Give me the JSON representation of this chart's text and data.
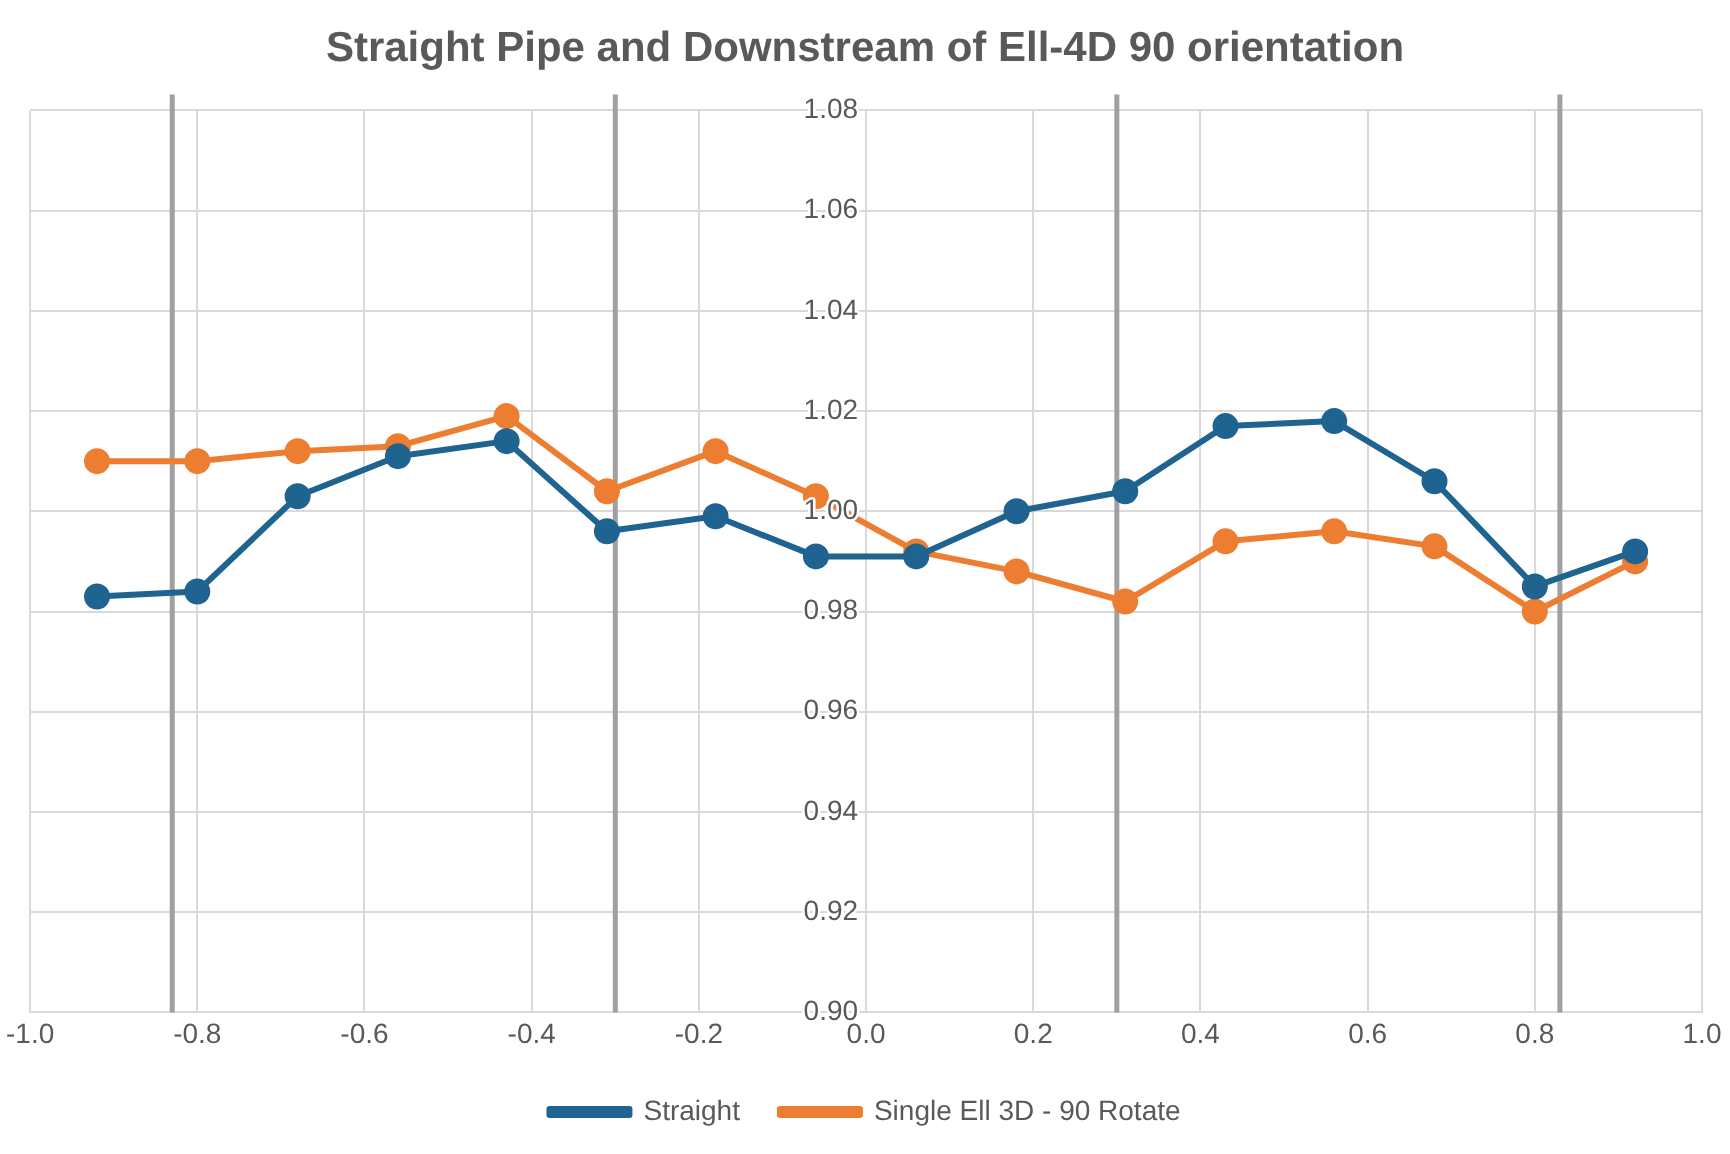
{
  "chart_data": {
    "type": "line",
    "title": "Straight Pipe and Downstream of Ell-4D 90 orientation",
    "x": [
      -0.92,
      -0.8,
      -0.68,
      -0.56,
      -0.43,
      -0.31,
      -0.18,
      -0.06,
      0.06,
      0.18,
      0.31,
      0.43,
      0.56,
      0.68,
      0.8,
      0.92
    ],
    "series": [
      {
        "name": "Straight",
        "color": "#1f6391",
        "values": [
          0.983,
          0.984,
          1.003,
          1.011,
          1.014,
          0.996,
          0.999,
          0.991,
          0.991,
          1.0,
          1.004,
          1.017,
          1.018,
          1.006,
          0.985,
          0.992
        ]
      },
      {
        "name": "Single Ell 3D - 90 Rotate",
        "color": "#ed7d31",
        "values": [
          1.01,
          1.01,
          1.012,
          1.013,
          1.019,
          1.004,
          1.012,
          1.003,
          0.992,
          0.988,
          0.982,
          0.994,
          0.996,
          0.993,
          0.98,
          0.99
        ]
      }
    ],
    "xlim": [
      -1.0,
      1.0
    ],
    "xticks": [
      {
        "value": -1,
        "label": "-1.0"
      },
      {
        "value": -0.8,
        "label": "-0.8"
      },
      {
        "value": -0.6,
        "label": "-0.6"
      },
      {
        "value": -0.4,
        "label": "-0.4"
      },
      {
        "value": -0.2,
        "label": "-0.2"
      },
      {
        "value": 0,
        "label": "0.0"
      },
      {
        "value": 0.2,
        "label": "0.2"
      },
      {
        "value": 0.4,
        "label": "0.4"
      },
      {
        "value": 0.6,
        "label": "0.6"
      },
      {
        "value": 0.8,
        "label": "0.8"
      },
      {
        "value": 1,
        "label": "1.0"
      }
    ],
    "ylim": [
      0.9,
      1.08
    ],
    "yticks": [
      {
        "value": 0.9,
        "label": "0.90"
      },
      {
        "value": 0.92,
        "label": "0.92"
      },
      {
        "value": 0.94,
        "label": "0.94"
      },
      {
        "value": 0.96,
        "label": "0.96"
      },
      {
        "value": 0.98,
        "label": "0.98"
      },
      {
        "value": 1.0,
        "label": "1.00"
      },
      {
        "value": 1.02,
        "label": "1.02"
      },
      {
        "value": 1.04,
        "label": "1.04"
      },
      {
        "value": 1.06,
        "label": "1.06"
      },
      {
        "value": 1.08,
        "label": "1.08"
      }
    ],
    "ref_lines": [
      {
        "axis": "x",
        "value": -0.83,
        "color": "#a0a0a0"
      },
      {
        "axis": "x",
        "value": -0.3,
        "color": "#a0a0a0"
      },
      {
        "axis": "x",
        "value": 0.3,
        "color": "#a0a0a0"
      },
      {
        "axis": "x",
        "value": 0.83,
        "color": "#a0a0a0"
      }
    ],
    "grid": true,
    "legend": "bottom",
    "marker": "circle",
    "line_style": "solid"
  }
}
